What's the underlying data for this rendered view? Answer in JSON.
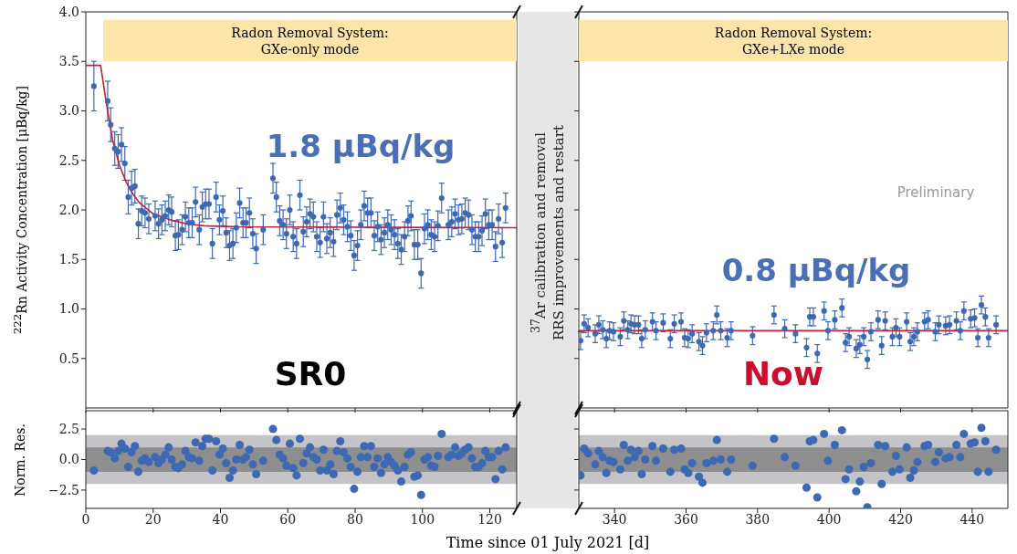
{
  "chart_data": [
    {
      "type": "scatter",
      "ylabel": "$^{222}$Rn Activity Concentration [μBq/kg]",
      "xlim": [
        0,
        128
      ],
      "xticks": [
        0,
        20,
        40,
        60,
        80,
        100,
        120
      ],
      "ylim": [
        0,
        4
      ],
      "yticks": [
        0.5,
        {
          "value": 1,
          "label": "1.0"
        },
        1.5,
        {
          "value": 2,
          "label": "2.0"
        },
        2.5,
        {
          "value": 3,
          "label": "3.0"
        },
        3.5,
        {
          "value": 4,
          "label": "4.0"
        }
      ],
      "tick_labels": "y",
      "annotations": [
        "Radon Removal System:\nGXe-only mode",
        "1.8 μBq/kg",
        "SR0",
        "$^{37}$Ar calibration and removal\nRRS improvements and restart"
      ],
      "series": [
        {
          "marker": "circle",
          "color": "#3d68b4",
          "x": [
            2.4,
            6.5,
            7.4,
            8.6,
            9.6,
            10.6,
            11.6,
            12.6,
            13.6,
            14.6,
            15.6,
            16.6,
            17.6,
            18.7,
            20.6,
            21.6,
            22.6,
            23.6,
            24.6,
            25.5,
            26.6,
            27.5,
            28.6,
            29.6,
            30.6,
            31.6,
            32.6,
            33.7,
            34.6,
            35.6,
            36.6,
            37.6,
            38.7,
            39.7,
            40.7,
            41.7,
            42.7,
            43.7,
            44.7,
            45.7,
            46.7,
            47.6,
            48.6,
            49.6,
            50.6,
            52.7,
            55.6,
            56.6,
            57.6,
            58.6,
            59.6,
            60.6,
            61.6,
            62.6,
            63.6,
            64.6,
            65.6,
            66.6,
            67.6,
            68.6,
            69.6,
            70.6,
            71.6,
            72.6,
            73.6,
            74.6,
            75.6,
            76.6,
            77.7,
            78.7,
            79.7,
            80.7,
            81.7,
            82.7,
            83.7,
            84.7,
            85.7,
            86.7,
            87.7,
            88.7,
            89.7,
            90.7,
            91.7,
            92.7,
            93.7,
            94.7,
            95.7,
            96.6,
            97.6,
            98.6,
            99.6,
            100.6,
            101.6,
            102.6,
            103.6,
            104.6,
            105.7,
            107.7,
            108.7,
            109.7,
            110.7,
            111.7,
            112.7,
            113.7,
            114.7,
            115.7,
            116.7,
            117.7,
            118.7,
            119.7,
            120.7,
            121.7,
            122.6,
            123.7,
            124.7
          ],
          "values": [
            3.25,
            3.1,
            2.86,
            2.62,
            2.59,
            2.66,
            2.47,
            2.13,
            2.22,
            2.24,
            1.86,
            1.99,
            1.97,
            1.91,
            1.94,
            1.86,
            1.9,
            1.94,
            2.0,
            1.98,
            1.74,
            1.75,
            1.8,
            1.93,
            1.87,
            1.87,
            2.08,
            1.8,
            2.03,
            2.06,
            2.06,
            1.66,
            2.13,
            1.9,
            1.99,
            1.77,
            1.64,
            1.66,
            1.82,
            2.07,
            1.87,
            1.87,
            1.97,
            1.76,
            1.61,
            1.8,
            2.32,
            2.13,
            1.89,
            1.85,
            1.76,
            2.0,
            1.73,
            1.66,
            2.15,
            1.78,
            1.88,
            1.96,
            1.93,
            1.73,
            1.67,
            1.93,
            1.71,
            1.77,
            1.68,
            1.95,
            2.02,
            1.9,
            1.83,
            1.74,
            1.54,
            1.64,
            1.85,
            2.04,
            1.97,
            1.97,
            1.74,
            1.83,
            1.7,
            1.77,
            1.85,
            1.8,
            1.75,
            1.66,
            1.6,
            1.73,
            1.89,
            1.94,
            1.65,
            1.65,
            1.36,
            1.81,
            1.85,
            1.75,
            1.73,
            1.84,
            2.12,
            1.85,
            1.88,
            1.96,
            1.9,
            1.91,
            1.97,
            1.95,
            1.8,
            1.73,
            1.73,
            1.79,
            1.96,
            1.85,
            1.85,
            1.63,
            1.91,
            1.67,
            2.02
          ],
          "errors": [
            0.25,
            0.2,
            0.17,
            0.17,
            0.17,
            0.17,
            0.17,
            0.17,
            0.17,
            0.17,
            0.15,
            0.15,
            0.15,
            0.15,
            0.15,
            0.15,
            0.15,
            0.15,
            0.15,
            0.15,
            0.15,
            0.15,
            0.15,
            0.15,
            0.15,
            0.15,
            0.15,
            0.15,
            0.15,
            0.15,
            0.15,
            0.15,
            0.15,
            0.15,
            0.15,
            0.15,
            0.15,
            0.15,
            0.15,
            0.15,
            0.15,
            0.15,
            0.15,
            0.15,
            0.15,
            0.15,
            0.15,
            0.15,
            0.15,
            0.15,
            0.15,
            0.15,
            0.15,
            0.15,
            0.15,
            0.15,
            0.15,
            0.15,
            0.15,
            0.15,
            0.15,
            0.15,
            0.15,
            0.15,
            0.15,
            0.15,
            0.15,
            0.15,
            0.15,
            0.15,
            0.15,
            0.15,
            0.15,
            0.15,
            0.15,
            0.15,
            0.15,
            0.15,
            0.15,
            0.15,
            0.15,
            0.15,
            0.15,
            0.15,
            0.15,
            0.15,
            0.15,
            0.15,
            0.15,
            0.15,
            0.15,
            0.15,
            0.15,
            0.15,
            0.15,
            0.15,
            0.15,
            0.15,
            0.15,
            0.15,
            0.15,
            0.15,
            0.15,
            0.15,
            0.15,
            0.15,
            0.15,
            0.15,
            0.15,
            0.15,
            0.15,
            0.15,
            0.15,
            0.15,
            0.15
          ]
        },
        {
          "type": "line",
          "color": "#c41e3a",
          "x": [
            0,
            4.4,
            6,
            8,
            10,
            12,
            14,
            16,
            20,
            25,
            30,
            35,
            45,
            128
          ],
          "values": [
            3.46,
            3.46,
            3.1,
            2.7,
            2.45,
            2.28,
            2.16,
            2.07,
            1.96,
            1.9,
            1.86,
            1.84,
            1.83,
            1.82
          ]
        }
      ]
    },
    {
      "type": "scatter",
      "xlim": [
        330,
        450
      ],
      "xticks": [
        340,
        360,
        380,
        400,
        420,
        440
      ],
      "ylim": [
        0,
        4
      ],
      "yticks": [
        0.5,
        1,
        1.5,
        2,
        2.5,
        3,
        3.5,
        4
      ],
      "tick_labels": false,
      "annotations": [
        "Radon Removal System:\nGXe+LXe mode",
        "0.8 μBq/kg",
        "Now",
        "Preliminary"
      ],
      "series": [
        {
          "marker": "circle",
          "color": "#3d68b4",
          "x": [
            330.5,
            331.5,
            332.6,
            334.6,
            335.6,
            336.7,
            337.7,
            338.6,
            339.7,
            341.6,
            342.6,
            343.7,
            344.6,
            345.6,
            346.7,
            347.6,
            348.6,
            350.6,
            351.6,
            353.6,
            355.6,
            356.7,
            358.6,
            359.6,
            360.6,
            361.7,
            363.6,
            364.6,
            365.7,
            367.6,
            368.6,
            369.7,
            371.5,
            372.6,
            378.6,
            384.6,
            387.6,
            390.6,
            393.7,
            394.6,
            395.6,
            396.7,
            398.6,
            399.7,
            401.6,
            403.6,
            404.6,
            405.6,
            407.6,
            408.6,
            409.7,
            410.7,
            411.7,
            413.7,
            414.7,
            415.7,
            417.7,
            418.7,
            419.7,
            421.7,
            422.7,
            423.7,
            424.7,
            426.7,
            427.7,
            429.7,
            430.7,
            432.6,
            433.7,
            435.6,
            436.7,
            437.7,
            439.6,
            440.7,
            441.6,
            442.6,
            443.7,
            444.6,
            446.7
          ],
          "values": [
            0.68,
            0.85,
            0.81,
            0.75,
            0.84,
            0.79,
            0.7,
            0.78,
            0.77,
            0.72,
            0.88,
            0.79,
            0.85,
            0.84,
            0.84,
            0.7,
            0.79,
            0.87,
            0.78,
            0.86,
            0.7,
            0.85,
            0.87,
            0.71,
            0.7,
            0.75,
            0.67,
            0.63,
            0.76,
            0.78,
            0.94,
            0.78,
            0.71,
            0.78,
            0.73,
            0.94,
            0.8,
            0.75,
            0.61,
            0.92,
            0.92,
            0.55,
            0.98,
            0.78,
            0.89,
            1.01,
            0.66,
            0.72,
            0.6,
            0.64,
            0.72,
            0.49,
            0.77,
            0.89,
            0.63,
            0.88,
            0.72,
            0.81,
            0.72,
            0.87,
            0.67,
            0.72,
            0.77,
            0.87,
            0.89,
            0.77,
            0.84,
            0.83,
            0.84,
            0.88,
            0.78,
            0.98,
            0.9,
            0.91,
            0.71,
            1.04,
            0.92,
            0.71,
            0.84
          ],
          "errors": [
            0.09,
            0.09,
            0.09,
            0.09,
            0.09,
            0.09,
            0.09,
            0.09,
            0.09,
            0.09,
            0.09,
            0.09,
            0.09,
            0.09,
            0.09,
            0.09,
            0.09,
            0.09,
            0.09,
            0.09,
            0.09,
            0.09,
            0.09,
            0.09,
            0.09,
            0.09,
            0.09,
            0.09,
            0.09,
            0.09,
            0.09,
            0.09,
            0.09,
            0.09,
            0.09,
            0.09,
            0.09,
            0.09,
            0.09,
            0.09,
            0.09,
            0.09,
            0.09,
            0.09,
            0.09,
            0.09,
            0.09,
            0.09,
            0.09,
            0.09,
            0.09,
            0.09,
            0.09,
            0.09,
            0.09,
            0.09,
            0.09,
            0.09,
            0.09,
            0.09,
            0.09,
            0.09,
            0.09,
            0.09,
            0.09,
            0.09,
            0.09,
            0.09,
            0.09,
            0.09,
            0.09,
            0.09,
            0.09,
            0.09,
            0.09,
            0.09,
            0.09,
            0.09,
            0.09
          ]
        },
        {
          "type": "line",
          "color": "#c41e3a",
          "x": [
            330,
            450
          ],
          "values": [
            0.78,
            0.78
          ]
        }
      ]
    },
    {
      "type": "scatter",
      "ylabel": "Norm. Res.",
      "xlabel": "Time since 01 July 2021 [d]",
      "xlim": [
        0,
        128
      ],
      "xticks": [
        0,
        20,
        40,
        60,
        80,
        100,
        120
      ],
      "ylim": [
        -4,
        4
      ],
      "yticks": [
        {
          "value": -2.5,
          "label": "−2.5"
        },
        {
          "value": 0,
          "label": "0.0"
        },
        2.5
      ],
      "marker": "circle",
      "bands": [
        {
          "axis": "y",
          "from": -2,
          "to": 2,
          "color": "#c3c3c8"
        },
        {
          "axis": "y",
          "from": -1,
          "to": 1,
          "color": "#8e8e8e"
        }
      ],
      "series": [
        {
          "color": "#3d68b4",
          "x": [
            2.4,
            6.5,
            7.4,
            8.6,
            9.6,
            10.6,
            11.6,
            12.6,
            13.6,
            14.6,
            15.6,
            16.6,
            17.6,
            18.7,
            20.6,
            21.6,
            22.6,
            23.6,
            24.6,
            25.5,
            26.6,
            27.5,
            28.6,
            29.6,
            30.6,
            31.6,
            32.6,
            33.7,
            34.6,
            35.6,
            36.6,
            37.6,
            38.7,
            39.7,
            40.7,
            41.7,
            42.7,
            43.7,
            44.7,
            45.7,
            46.7,
            47.6,
            48.6,
            49.6,
            50.6,
            52.7,
            55.6,
            56.6,
            57.6,
            58.6,
            59.6,
            60.6,
            61.6,
            62.6,
            63.6,
            64.6,
            65.6,
            66.6,
            67.6,
            68.6,
            69.6,
            70.6,
            71.6,
            72.6,
            73.6,
            74.6,
            75.6,
            76.6,
            77.7,
            78.7,
            79.7,
            80.7,
            81.7,
            82.7,
            83.7,
            84.7,
            85.7,
            86.7,
            87.7,
            88.7,
            89.7,
            90.7,
            91.7,
            92.7,
            93.7,
            94.7,
            95.7,
            96.6,
            97.6,
            98.6,
            99.6,
            100.6,
            101.6,
            102.6,
            103.6,
            104.6,
            105.7,
            107.7,
            108.7,
            109.7,
            110.7,
            111.7,
            112.7,
            113.7,
            114.7,
            115.7,
            116.7,
            117.7,
            118.7,
            119.7,
            120.7,
            121.7,
            122.6,
            123.7,
            124.7
          ],
          "values": [
            -0.9,
            0.7,
            0.6,
            0.1,
            0.7,
            1.3,
            0.9,
            -0.6,
            0.6,
            1.1,
            -1.0,
            -0.1,
            0.1,
            -0.2,
            0.2,
            -0.3,
            0.0,
            0.4,
            1.0,
            0.0,
            -0.6,
            -0.7,
            -0.4,
            0.7,
            0.2,
            0.1,
            1.4,
            -0.1,
            1.1,
            1.7,
            1.7,
            -0.9,
            1.5,
            0.4,
            0.9,
            -0.3,
            -1.5,
            -0.9,
            0.0,
            1.2,
            0.0,
            0.2,
            0.8,
            -0.4,
            -1.2,
            -0.1,
            2.5,
            1.6,
            0.4,
            0.1,
            -0.5,
            1.3,
            -0.7,
            -1.3,
            1.7,
            -0.3,
            0.5,
            1.0,
            0.2,
            0.0,
            -0.9,
            0.8,
            -0.9,
            -0.4,
            -1.2,
            0.7,
            1.5,
            0.6,
            0.1,
            -0.6,
            -2.4,
            -1.0,
            0.2,
            1.1,
            0.2,
            1.1,
            -0.6,
            0.1,
            -1.1,
            -0.4,
            0.2,
            -0.2,
            -0.5,
            -0.9,
            -1.8,
            -0.6,
            0.4,
            0.6,
            -1.4,
            -1.3,
            -2.9,
            0.0,
            0.2,
            -0.5,
            -0.6,
            0.3,
            2.1,
            0.2,
            0.4,
            1.0,
            0.3,
            0.5,
            0.8,
            1.0,
            0.1,
            -0.6,
            -0.6,
            -0.3,
            0.7,
            0.2,
            0.2,
            -1.6,
            0.7,
            -0.8,
            1.0
          ]
        }
      ]
    },
    {
      "type": "scatter",
      "xlim": [
        330,
        450
      ],
      "xticks": [
        340,
        360,
        380,
        400,
        420,
        440
      ],
      "ylim": [
        -4,
        4
      ],
      "yticks": [
        -2.5,
        0,
        2.5
      ],
      "tick_labels": "x",
      "marker": "circle",
      "bands": [
        {
          "axis": "y",
          "from": -2,
          "to": 2,
          "color": "#c3c3c8"
        },
        {
          "axis": "y",
          "from": -1,
          "to": 1,
          "color": "#8e8e8e"
        }
      ],
      "series": [
        {
          "color": "#3d68b4",
          "x": [
            330.5,
            331.5,
            332.6,
            334.6,
            335.6,
            336.7,
            337.7,
            338.6,
            339.7,
            341.6,
            342.6,
            343.7,
            344.6,
            345.6,
            346.7,
            347.6,
            348.6,
            350.6,
            351.6,
            353.6,
            355.6,
            356.7,
            358.6,
            359.6,
            360.6,
            361.7,
            363.6,
            364.6,
            365.7,
            367.6,
            368.6,
            369.7,
            371.5,
            372.6,
            378.6,
            384.6,
            387.6,
            390.6,
            393.7,
            394.6,
            395.6,
            396.7,
            398.6,
            399.7,
            401.6,
            403.6,
            404.6,
            405.6,
            407.6,
            408.6,
            409.7,
            410.7,
            411.7,
            413.7,
            414.7,
            415.7,
            417.7,
            418.7,
            419.7,
            421.7,
            422.7,
            423.7,
            424.7,
            426.7,
            427.7,
            429.7,
            430.7,
            432.6,
            433.7,
            435.6,
            436.7,
            437.7,
            439.6,
            440.7,
            441.6,
            442.6,
            443.7,
            444.6,
            446.7
          ],
          "values": [
            -1.3,
            0.9,
            0.5,
            -0.4,
            0.7,
            0.2,
            -1.1,
            -0.1,
            -0.2,
            -0.8,
            1.2,
            -0.1,
            0.8,
            0.2,
            0.7,
            -1.2,
            0.0,
            1.1,
            -0.1,
            0.9,
            -1.0,
            0.8,
            0.9,
            -0.8,
            -1.1,
            -0.3,
            -1.4,
            -1.9,
            -0.3,
            -0.1,
            1.6,
            0.0,
            -1.0,
            0.0,
            -0.5,
            1.7,
            0.2,
            -0.5,
            -2.3,
            1.5,
            1.6,
            -3.1,
            2.1,
            -0.1,
            1.2,
            2.4,
            -1.6,
            -0.8,
            -2.6,
            -1.8,
            -0.6,
            -3.9,
            -0.3,
            1.2,
            -2.0,
            1.1,
            -1.0,
            0.3,
            -0.8,
            1.0,
            -1.5,
            -0.9,
            -0.2,
            1.1,
            1.2,
            -0.2,
            0.6,
            0.1,
            0.2,
            1.2,
            0.2,
            2.1,
            1.3,
            1.4,
            -1.0,
            2.6,
            1.5,
            -1.0,
            0.8
          ]
        }
      ]
    }
  ]
}
